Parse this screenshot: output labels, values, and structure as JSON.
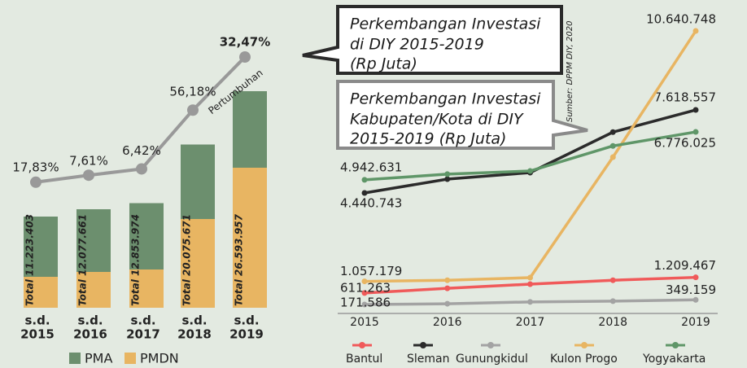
{
  "chart_data": [
    {
      "type": "bar",
      "stacked": true,
      "categories": [
        [
          "s.d.",
          "2015"
        ],
        [
          "s.d.",
          "2016"
        ],
        [
          "s.d.",
          "2017"
        ],
        [
          "s.d.",
          "2018"
        ],
        [
          "s.d.",
          "2019"
        ]
      ],
      "series": [
        {
          "name": "PMA",
          "color": "#6c8f6e",
          "values": [
            7400000,
            7700000,
            8150000,
            9150000,
            9400000
          ]
        },
        {
          "name": "PMDN",
          "color": "#e8b562",
          "values": [
            3800000,
            4400000,
            4700000,
            10900000,
            17200000
          ]
        }
      ],
      "totals": [
        11223403,
        12077661,
        12853974,
        20075671,
        26593957
      ],
      "total_labels": [
        "Total 11.223.403",
        "Total 12.077.661",
        "Total 12.853.974",
        "Total 20.075.671",
        "Total 26.593.957"
      ],
      "growth_name": "Pertumbuhan",
      "growth_labels": [
        "17,83%",
        "7,61%",
        "6,42%",
        "56,18%",
        "32,47%"
      ],
      "growth_color": "#999999",
      "ylim": [
        0,
        30000000
      ]
    },
    {
      "type": "line",
      "title_lines": [
        "Perkembangan Investasi",
        "di DIY 2015-2019",
        "(Rp Juta)"
      ],
      "subtitle_lines": [
        "Perkembangan Investasi",
        "Kabupaten/Kota di DIY",
        "2015-2019 (Rp Juta)"
      ],
      "source": "Sumber: DPPM DIY, 2020",
      "categories": [
        "2015",
        "2016",
        "2017",
        "2018",
        "2019"
      ],
      "series": [
        {
          "name": "Bantul",
          "color": "#f05a5a",
          "values": [
            611263,
            790000,
            950000,
            1100000,
            1209467
          ],
          "value_labels": [
            "611.263",
            null,
            null,
            null,
            "1.209.467"
          ]
        },
        {
          "name": "Sleman",
          "color": "#2b2b2b",
          "values": [
            4440743,
            4970000,
            5220000,
            6770000,
            7618557
          ],
          "value_labels": [
            "4.440.743",
            null,
            null,
            null,
            "7.618.557"
          ]
        },
        {
          "name": "Gunungkidul",
          "color": "#a3a3a3",
          "values": [
            171586,
            200000,
            270000,
            300000,
            349159
          ],
          "value_labels": [
            "171.586",
            null,
            null,
            null,
            "349.159"
          ]
        },
        {
          "name": "Kulon Progo",
          "color": "#e8b562",
          "values": [
            1057179,
            1100000,
            1200000,
            5810000,
            10640748
          ],
          "value_labels": [
            "1.057.179",
            null,
            null,
            null,
            "10.640.748"
          ]
        },
        {
          "name": "Yogyakarta",
          "color": "#5f9668",
          "values": [
            4942631,
            5160000,
            5280000,
            6240000,
            6776025
          ],
          "value_labels": [
            "4.942.631",
            null,
            null,
            null,
            "6.776.025"
          ]
        }
      ],
      "ylim": [
        0,
        11000000
      ]
    }
  ]
}
